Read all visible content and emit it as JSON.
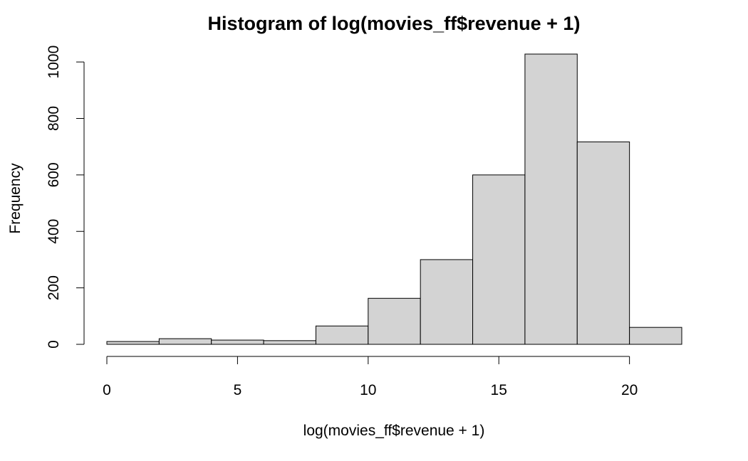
{
  "chart_data": {
    "type": "bar",
    "title": "Histogram of log(movies_ff$revenue + 1)",
    "xlabel": "log(movies_ff$revenue + 1)",
    "ylabel": "Frequency",
    "bins": [
      {
        "x0": 0,
        "x1": 2,
        "value": 10
      },
      {
        "x0": 2,
        "x1": 4,
        "value": 20
      },
      {
        "x0": 4,
        "x1": 6,
        "value": 15
      },
      {
        "x0": 6,
        "x1": 8,
        "value": 13
      },
      {
        "x0": 8,
        "x1": 10,
        "value": 65
      },
      {
        "x0": 10,
        "x1": 12,
        "value": 163
      },
      {
        "x0": 12,
        "x1": 14,
        "value": 300
      },
      {
        "x0": 14,
        "x1": 16,
        "value": 600
      },
      {
        "x0": 16,
        "x1": 18,
        "value": 1028
      },
      {
        "x0": 18,
        "x1": 20,
        "value": 717
      },
      {
        "x0": 20,
        "x1": 22,
        "value": 60
      }
    ],
    "x_ticks": [
      0,
      5,
      10,
      15,
      20
    ],
    "y_ticks": [
      0,
      200,
      400,
      600,
      800,
      1000
    ],
    "x_tick_labels": [
      "0",
      "5",
      "10",
      "15",
      "20"
    ],
    "y_tick_labels": [
      "0",
      "200",
      "400",
      "600",
      "800",
      "1000"
    ],
    "xlim": [
      0,
      22
    ],
    "ylim": [
      0,
      1028
    ],
    "grid": false,
    "legend": "none",
    "colors": {
      "bar_fill": "#d3d3d3",
      "bar_stroke": "#000000"
    }
  }
}
